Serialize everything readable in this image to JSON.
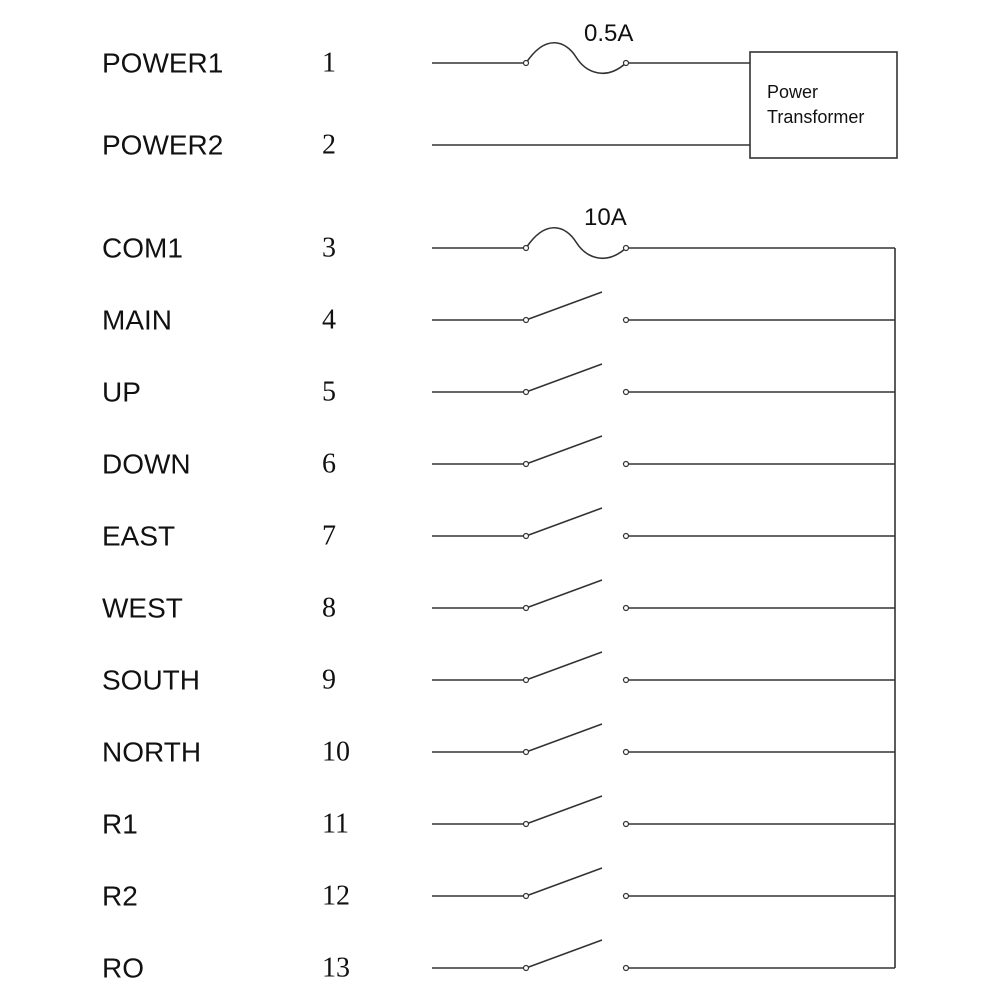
{
  "terminals": [
    {
      "label": "POWER1",
      "number": "1"
    },
    {
      "label": "POWER2",
      "number": "2"
    },
    {
      "label": "COM1",
      "number": "3"
    },
    {
      "label": "MAIN",
      "number": "4"
    },
    {
      "label": "UP",
      "number": "5"
    },
    {
      "label": "DOWN",
      "number": "6"
    },
    {
      "label": "EAST",
      "number": "7"
    },
    {
      "label": "WEST",
      "number": "8"
    },
    {
      "label": "SOUTH",
      "number": "9"
    },
    {
      "label": "NORTH",
      "number": "10"
    },
    {
      "label": "R1",
      "number": "11"
    },
    {
      "label": "R2",
      "number": "12"
    },
    {
      "label": "RO",
      "number": "13"
    }
  ],
  "fuses": [
    {
      "rating": "0.5A"
    },
    {
      "rating": "10A"
    }
  ],
  "transformer": {
    "lines": [
      "Power",
      "Transformer"
    ]
  }
}
